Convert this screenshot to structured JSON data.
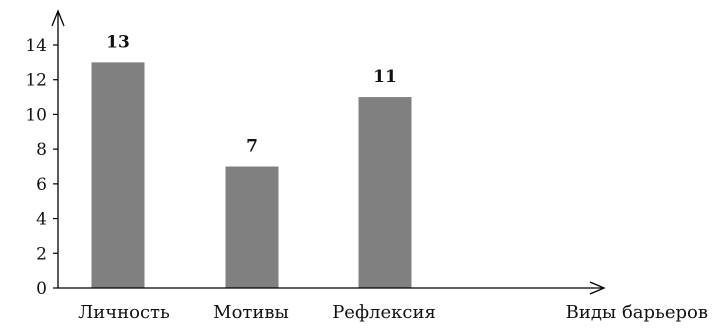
{
  "chart_data": {
    "type": "bar",
    "categories": [
      "Личность",
      "Мотивы",
      "Рефлексия"
    ],
    "values": [
      13,
      7,
      11
    ],
    "data_labels": [
      "13",
      "7",
      "11"
    ],
    "yticks": [
      0,
      2,
      4,
      6,
      8,
      10,
      12,
      14
    ],
    "ylim": [
      0,
      14
    ],
    "xlabel": "Виды барьеров",
    "ylabel": "",
    "title": "",
    "grid": false,
    "legend": "none",
    "colors": {
      "bar": "#808080",
      "axis": "#000000"
    }
  }
}
